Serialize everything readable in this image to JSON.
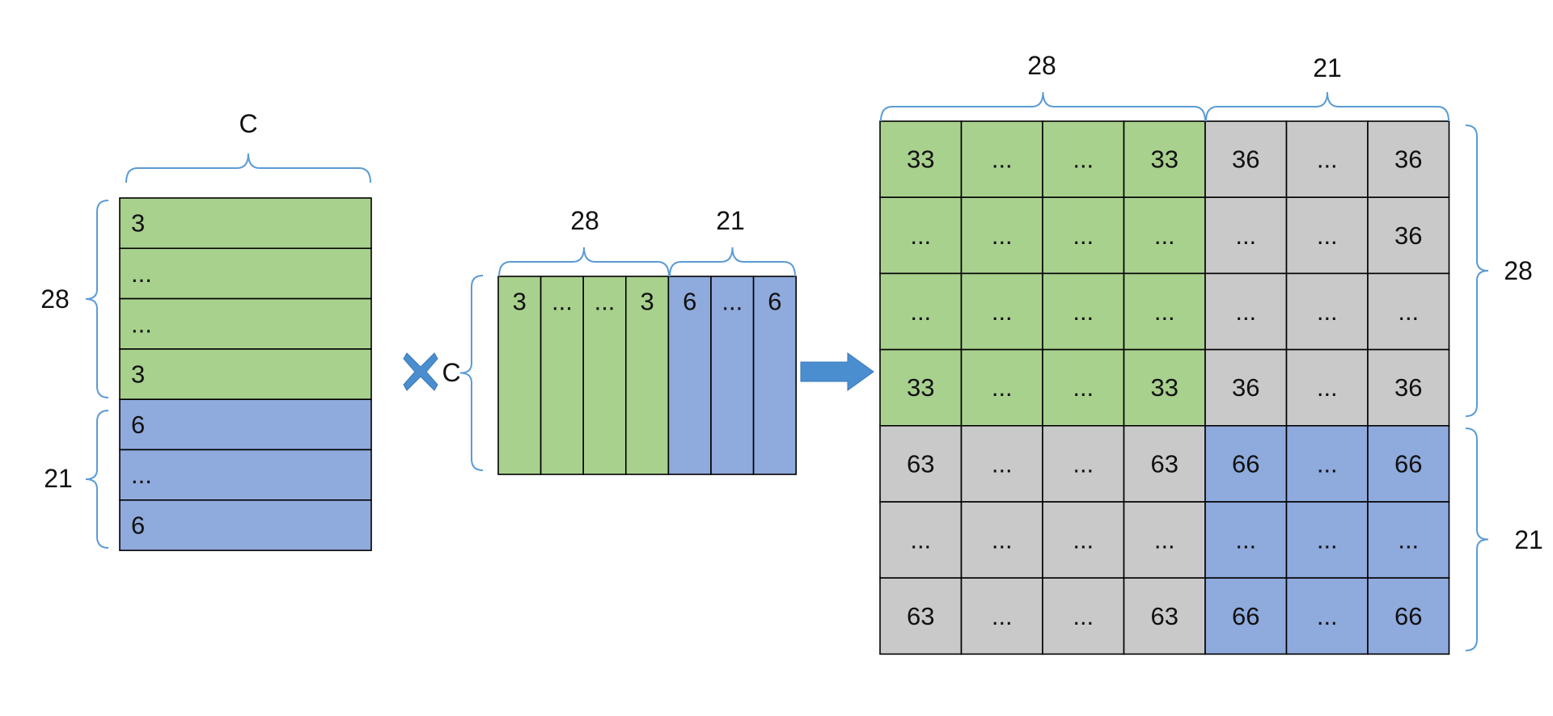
{
  "colors": {
    "green": "#a9d18e",
    "blue": "#8faadc",
    "gray": "#c9c9c9",
    "brace": "#5b9bd5",
    "arrow": "#4a8ed0",
    "border": "#000000"
  },
  "left_vector": {
    "width_label": "C",
    "rows": [
      {
        "text": "3",
        "color": "green"
      },
      {
        "text": "...",
        "color": "green"
      },
      {
        "text": "...",
        "color": "green"
      },
      {
        "text": "3",
        "color": "green"
      },
      {
        "text": "6",
        "color": "blue"
      },
      {
        "text": "...",
        "color": "blue"
      },
      {
        "text": "6",
        "color": "blue"
      }
    ],
    "group_labels": [
      "28",
      "21"
    ]
  },
  "operator": {
    "symbol": "multiply",
    "label": "C"
  },
  "middle_vector": {
    "height_label": "C",
    "cols": [
      {
        "text": "3",
        "color": "green"
      },
      {
        "text": "...",
        "color": "green"
      },
      {
        "text": "...",
        "color": "green"
      },
      {
        "text": "3",
        "color": "green"
      },
      {
        "text": "6",
        "color": "blue"
      },
      {
        "text": "...",
        "color": "blue"
      },
      {
        "text": "6",
        "color": "blue"
      }
    ],
    "group_labels": [
      "28",
      "21"
    ]
  },
  "result_arrow": "right-arrow",
  "result_matrix": {
    "col_group_labels": [
      "28",
      "21"
    ],
    "row_group_labels": [
      "28",
      "21"
    ],
    "rows": [
      [
        [
          "33",
          "green"
        ],
        [
          "...",
          "green"
        ],
        [
          "...",
          "green"
        ],
        [
          "33",
          "green"
        ],
        [
          "36",
          "gray"
        ],
        [
          "...",
          "gray"
        ],
        [
          "36",
          "gray"
        ]
      ],
      [
        [
          "...",
          "green"
        ],
        [
          "...",
          "green"
        ],
        [
          "...",
          "green"
        ],
        [
          "...",
          "green"
        ],
        [
          "...",
          "gray"
        ],
        [
          "...",
          "gray"
        ],
        [
          "36",
          "gray"
        ]
      ],
      [
        [
          "...",
          "green"
        ],
        [
          "...",
          "green"
        ],
        [
          "...",
          "green"
        ],
        [
          "...",
          "green"
        ],
        [
          "...",
          "gray"
        ],
        [
          "...",
          "gray"
        ],
        [
          "...",
          "gray"
        ]
      ],
      [
        [
          "33",
          "green"
        ],
        [
          "...",
          "green"
        ],
        [
          "...",
          "green"
        ],
        [
          "33",
          "green"
        ],
        [
          "36",
          "gray"
        ],
        [
          "...",
          "gray"
        ],
        [
          "36",
          "gray"
        ]
      ],
      [
        [
          "63",
          "gray"
        ],
        [
          "...",
          "gray"
        ],
        [
          "...",
          "gray"
        ],
        [
          "63",
          "gray"
        ],
        [
          "66",
          "blue"
        ],
        [
          "...",
          "blue"
        ],
        [
          "66",
          "blue"
        ]
      ],
      [
        [
          "...",
          "gray"
        ],
        [
          "...",
          "gray"
        ],
        [
          "...",
          "gray"
        ],
        [
          "...",
          "gray"
        ],
        [
          "...",
          "blue"
        ],
        [
          "...",
          "blue"
        ],
        [
          "...",
          "blue"
        ]
      ],
      [
        [
          "63",
          "gray"
        ],
        [
          "...",
          "gray"
        ],
        [
          "...",
          "gray"
        ],
        [
          "63",
          "gray"
        ],
        [
          "66",
          "blue"
        ],
        [
          "...",
          "blue"
        ],
        [
          "66",
          "blue"
        ]
      ]
    ]
  }
}
